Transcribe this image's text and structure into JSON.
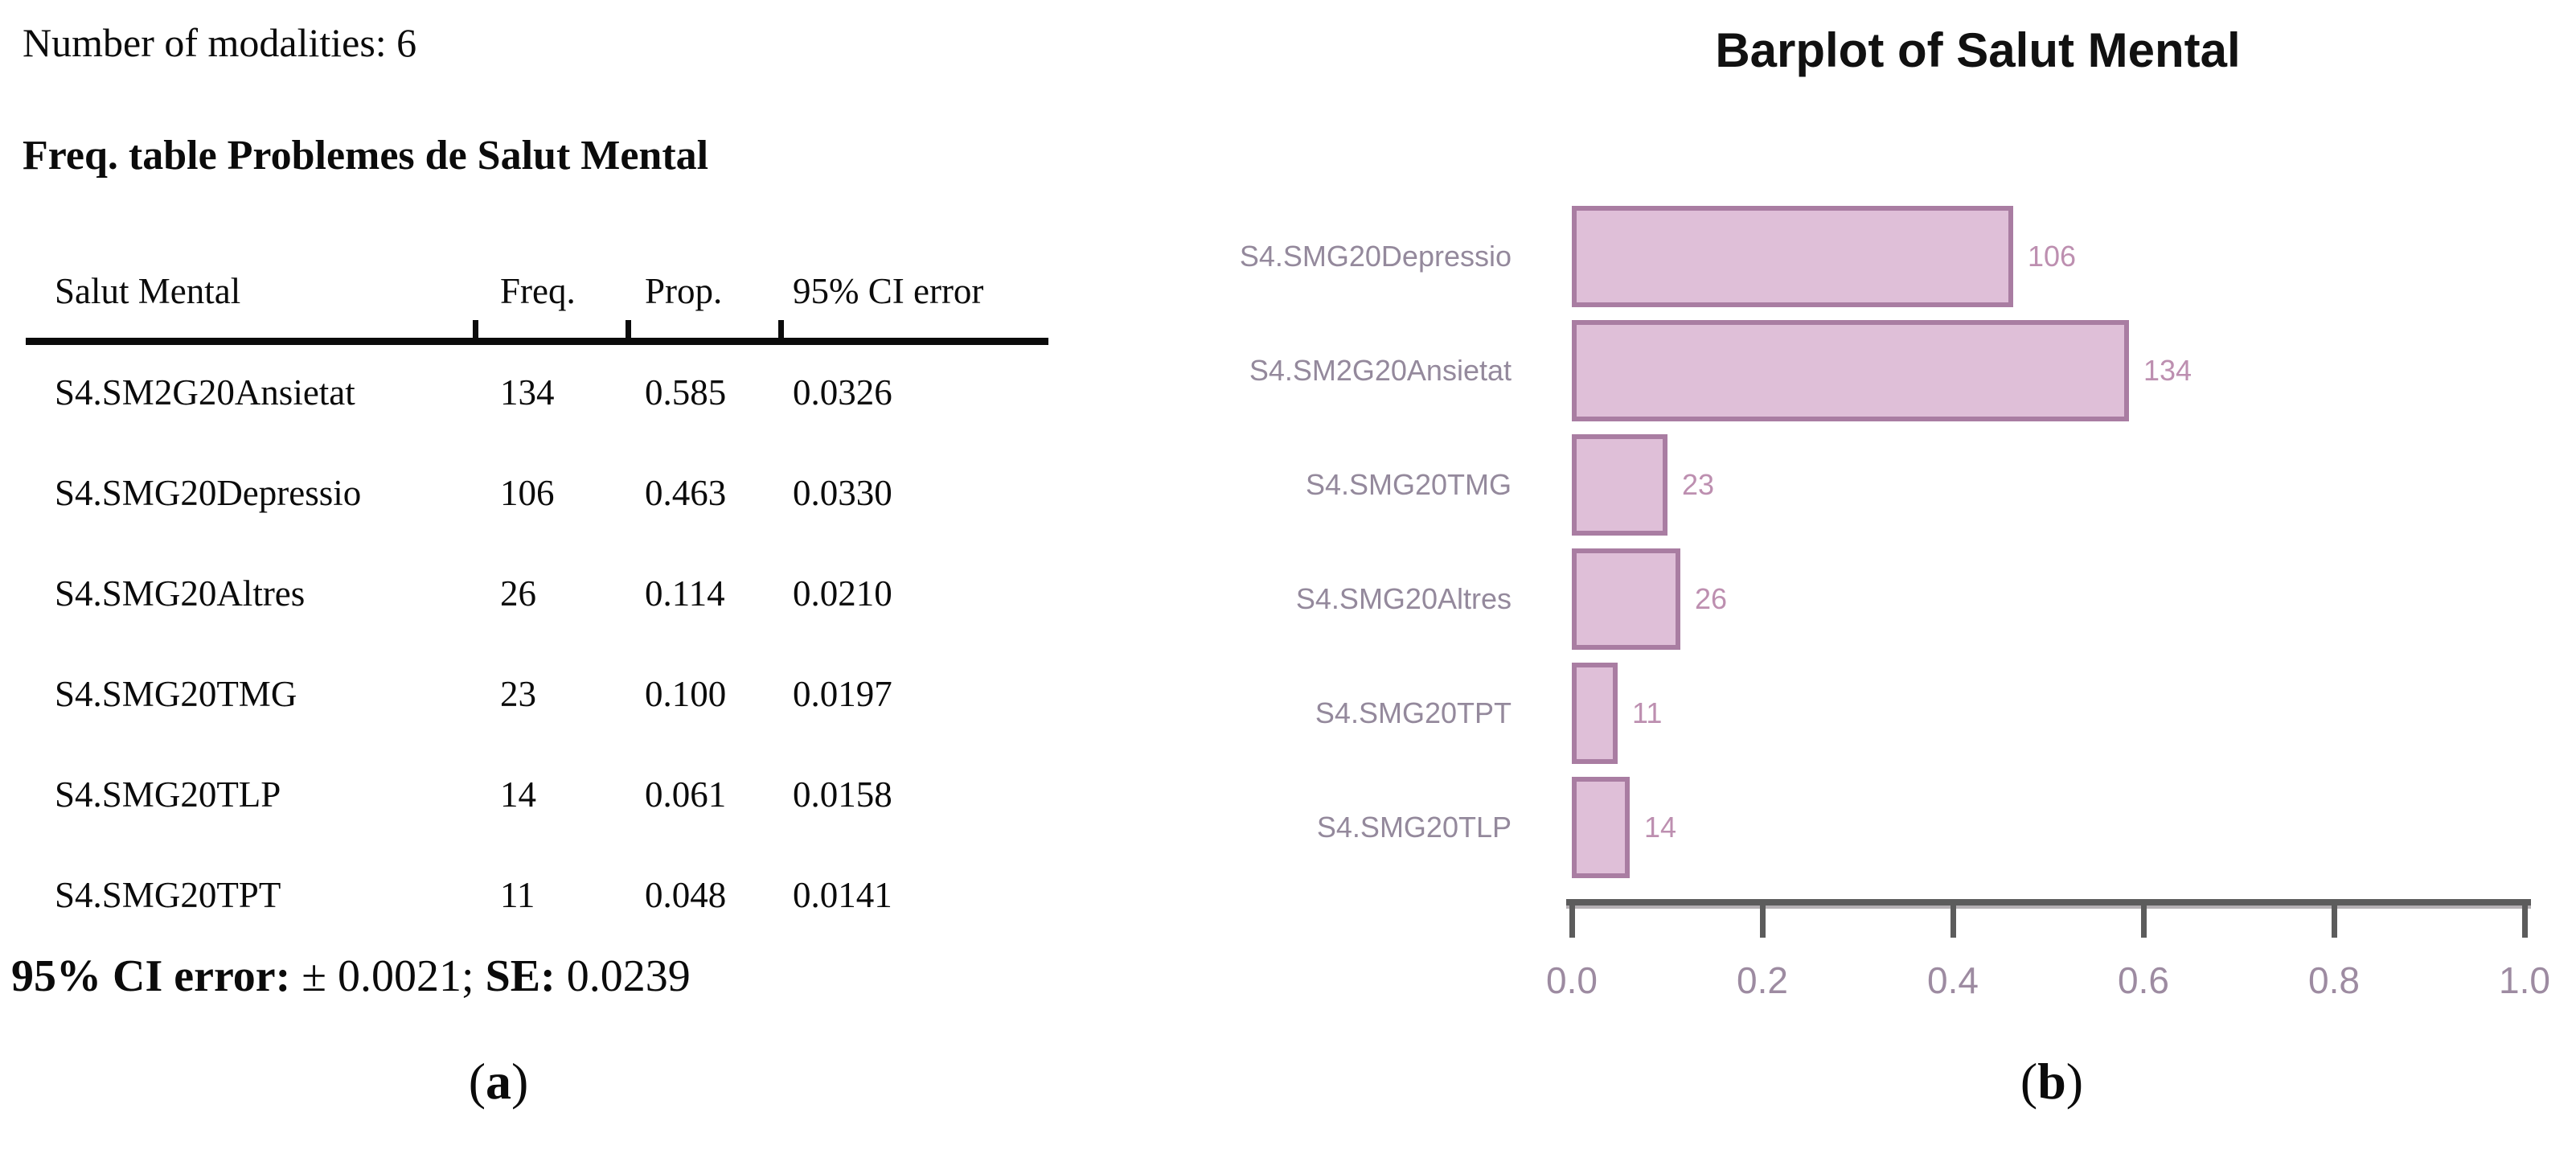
{
  "panel_a": {
    "modalities_line": "Number of modalities: 6",
    "table_title": "Freq. table Problemes de Salut Mental",
    "table": {
      "columns": [
        "Salut Mental",
        "Freq.",
        "Prop.",
        "95% CI error"
      ],
      "rows": [
        {
          "label": "S4.SM2G20Ansietat",
          "freq": "134",
          "prop": "0.585",
          "ci": "0.0326"
        },
        {
          "label": "S4.SMG20Depressio",
          "freq": "106",
          "prop": "0.463",
          "ci": "0.0330"
        },
        {
          "label": "S4.SMG20Altres",
          "freq": "26",
          "prop": "0.114",
          "ci": "0.0210"
        },
        {
          "label": "S4.SMG20TMG",
          "freq": "23",
          "prop": "0.100",
          "ci": "0.0197"
        },
        {
          "label": "S4.SMG20TLP",
          "freq": "14",
          "prop": "0.061",
          "ci": "0.0158"
        },
        {
          "label": "S4.SMG20TPT",
          "freq": "11",
          "prop": "0.048",
          "ci": "0.0141"
        }
      ]
    },
    "footer": {
      "ci_label": "95% CI error:",
      "ci_value": "± 0.0021;",
      "se_label": "SE:",
      "se_value": "0.0239"
    },
    "caption": {
      "pre": "(",
      "letter": "a",
      "post": ")"
    }
  },
  "panel_b": {
    "title": "Barplot of Salut Mental",
    "caption": {
      "pre": "(",
      "letter": "b",
      "post": ")"
    }
  },
  "chart_data": [
    {
      "type": "table",
      "note": "Number of modalities: 6",
      "title": "Freq. table Problemes de Salut Mental",
      "columns": [
        "Salut Mental",
        "Freq.",
        "Prop.",
        "95% CI error"
      ],
      "rows": [
        [
          "S4.SM2G20Ansietat",
          134,
          0.585,
          0.0326
        ],
        [
          "S4.SMG20Depressio",
          106,
          0.463,
          0.033
        ],
        [
          "S4.SMG20Altres",
          26,
          0.114,
          0.021
        ],
        [
          "S4.SMG20TMG",
          23,
          0.1,
          0.0197
        ],
        [
          "S4.SMG20TLP",
          14,
          0.061,
          0.0158
        ],
        [
          "S4.SMG20TPT",
          11,
          0.048,
          0.0141
        ]
      ],
      "footer": "95% CI error: ± 0.0021; SE: 0.0239"
    },
    {
      "type": "bar",
      "orientation": "horizontal",
      "title": "Barplot of Salut Mental",
      "categories": [
        "S4.SMG20Depressio",
        "S4.SM2G20Ansietat",
        "S4.SMG20TMG",
        "S4.SMG20Altres",
        "S4.SMG20TPT",
        "S4.SMG20TLP"
      ],
      "values": [
        0.463,
        0.585,
        0.1,
        0.114,
        0.048,
        0.061
      ],
      "bar_labels": [
        "106",
        "134",
        "23",
        "26",
        "11",
        "14"
      ],
      "xlim": [
        0.0,
        1.0
      ],
      "x_ticks": [
        "0.0",
        "0.2",
        "0.4",
        "0.6",
        "0.8",
        "1.0"
      ],
      "grid": false,
      "legend": "none"
    }
  ],
  "colors": {
    "bar_fill": "#dfbfd8",
    "bar_border": "#a97da2",
    "category_label": "#94899c",
    "value_label": "#bd8fb0",
    "axis": "#5c5c5c",
    "axis_tick_label": "#9d8ba1",
    "text": "#0b0b0b",
    "background": "#ffffff"
  }
}
